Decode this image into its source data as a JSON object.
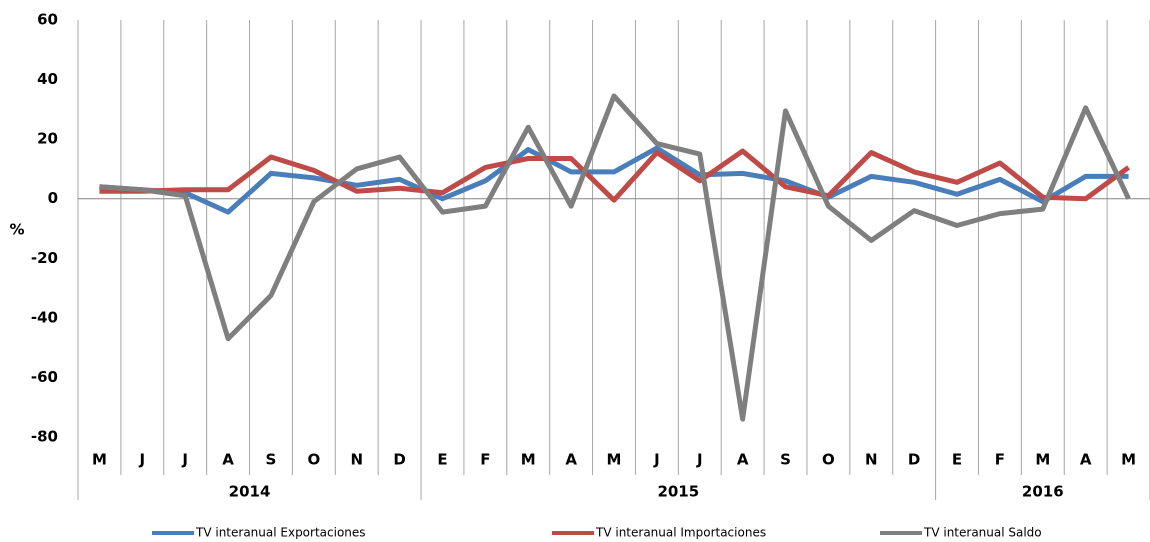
{
  "chart_data": {
    "type": "line",
    "categories": [
      "M",
      "J",
      "J",
      "A",
      "S",
      "O",
      "N",
      "D",
      "E",
      "F",
      "M",
      "A",
      "M",
      "J",
      "J",
      "A",
      "S",
      "O",
      "N",
      "D",
      "E",
      "F",
      "M",
      "A",
      "M"
    ],
    "groups": [
      {
        "label": "2014",
        "count": 8
      },
      {
        "label": "2015",
        "count": 12
      },
      {
        "label": "2016",
        "count": 5
      }
    ],
    "ylabel": "%",
    "ylim": [
      -80,
      60
    ],
    "yticks": [
      -80,
      -60,
      -40,
      -20,
      0,
      20,
      40,
      60
    ],
    "legend": "bottom",
    "series": [
      {
        "name": "TV interanual Exportaciones",
        "color": "#4a7ebb",
        "values": [
          4,
          3,
          2,
          -4.5,
          8.5,
          7,
          4.5,
          6.5,
          0,
          6,
          16.5,
          9,
          9,
          17,
          8,
          8.5,
          6,
          0.5,
          7.5,
          5.5,
          1.5,
          6.5,
          -1,
          7.5,
          7.5
        ]
      },
      {
        "name": "TV interanual Importaciones",
        "color": "#be4b48",
        "values": [
          2.5,
          2.5,
          3,
          3,
          14,
          9.5,
          2.5,
          3.5,
          2,
          10.5,
          13.5,
          13.5,
          -0.5,
          15.5,
          6,
          16,
          4,
          1,
          15.5,
          9,
          5.5,
          12,
          0.5,
          0,
          10.5
        ]
      },
      {
        "name": "TV interanual Saldo",
        "color": "#7f7f7f",
        "values": [
          4,
          3,
          1,
          -47,
          -32.5,
          -1,
          10,
          14,
          -4.5,
          -2.5,
          24,
          -2.5,
          34.5,
          18.5,
          15,
          -74,
          29.5,
          -2.5,
          -14,
          -4,
          -9,
          -5,
          -3.5,
          30.5,
          0
        ]
      }
    ]
  }
}
